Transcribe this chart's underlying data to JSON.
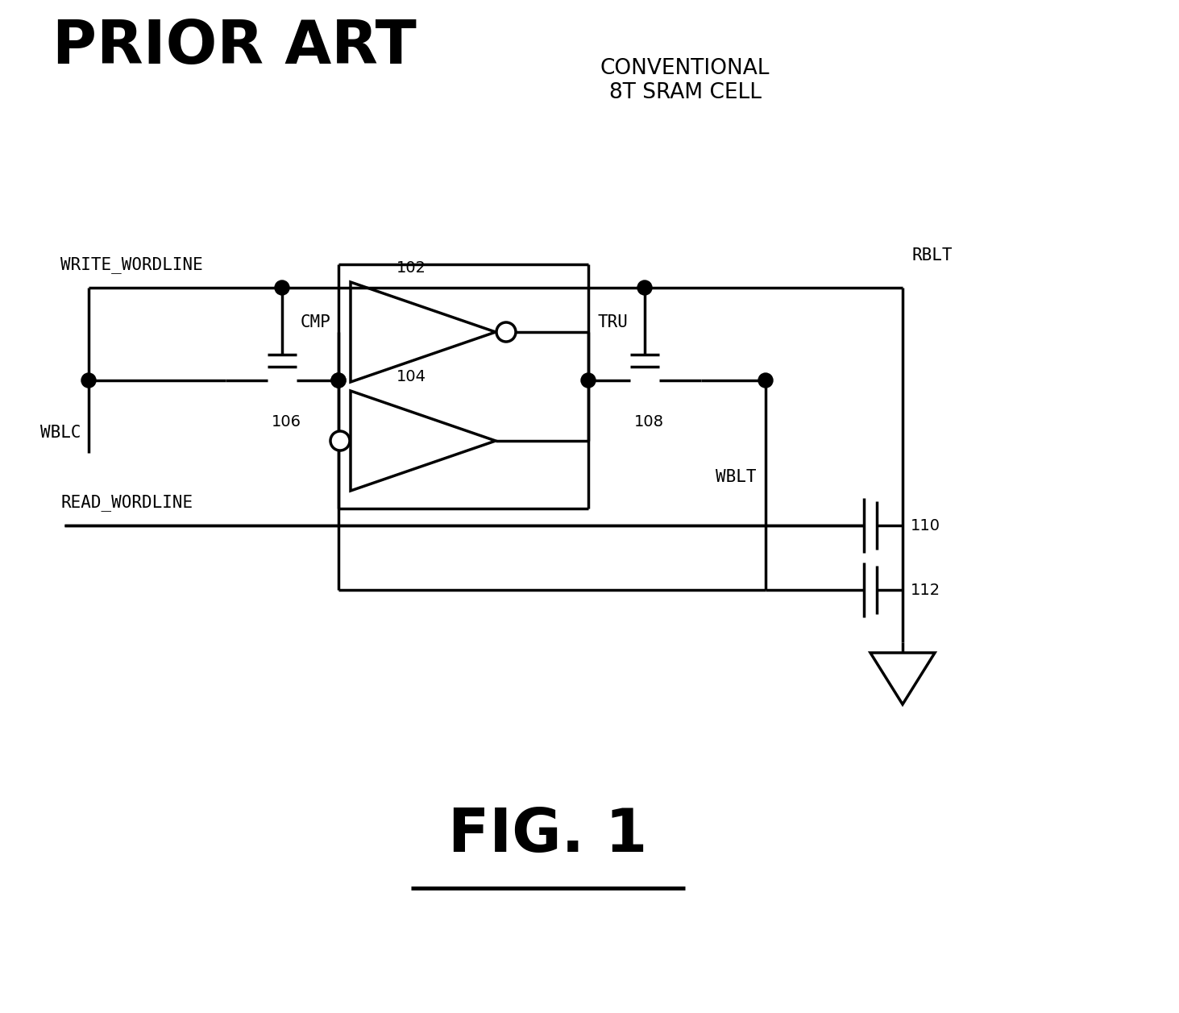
{
  "title_prior_art": "PRIOR ART",
  "title_conv": "CONVENTIONAL\n8T SRAM CELL",
  "fig_label": "FIG. 1",
  "background_color": "#ffffff",
  "line_color": "#000000",
  "line_width": 2.5,
  "labels": {
    "write_wordline": "WRITE_WORDLINE",
    "read_wordline": "READ_WORDLINE",
    "wblc": "WBLC",
    "wblt": "WBLT",
    "rblt": "RBLT",
    "cmp": "CMP",
    "tru": "TRU",
    "n102": "102",
    "n104": "104",
    "n106": "106",
    "n108": "108",
    "n110": "110",
    "n112": "112"
  }
}
